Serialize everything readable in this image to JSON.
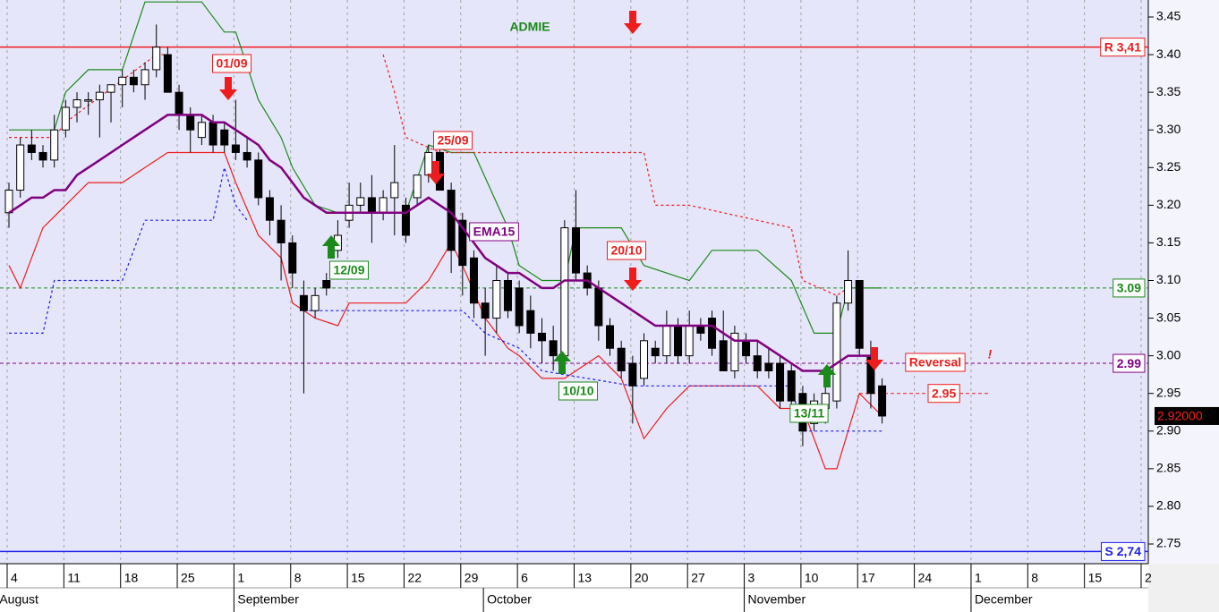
{
  "chart_data": {
    "type": "candlestick",
    "title": "ADMIE",
    "title_color": "#1a8a1a",
    "ylim": [
      2.74,
      3.47
    ],
    "yticks": [
      2.75,
      {
        "value": 2.8,
        "label": "2.80"
      },
      2.85,
      {
        "value": 2.9,
        "label": "2.90"
      },
      2.95,
      {
        "value": 3.0,
        "label": "3.00"
      },
      3.05,
      {
        "value": 3.1,
        "label": "3.10"
      },
      3.15,
      {
        "value": 3.2,
        "label": "3.20"
      },
      3.25,
      {
        "value": 3.3,
        "label": "3.30"
      },
      3.35,
      {
        "value": 3.4,
        "label": "3.40"
      },
      3.45
    ],
    "xticks": [
      {
        "value": "08-04",
        "label": "4"
      },
      {
        "value": "08-11",
        "label": "11"
      },
      {
        "value": "08-18",
        "label": "18"
      },
      {
        "value": "08-25",
        "label": "25"
      },
      {
        "value": "09-01",
        "label": "1"
      },
      {
        "value": "09-08",
        "label": "8"
      },
      {
        "value": "09-15",
        "label": "15"
      },
      {
        "value": "09-22",
        "label": "22"
      },
      {
        "value": "09-29",
        "label": "29"
      },
      {
        "value": "10-06",
        "label": "6"
      },
      {
        "value": "10-13",
        "label": "13"
      },
      {
        "value": "10-20",
        "label": "20"
      },
      {
        "value": "10-27",
        "label": "27"
      },
      {
        "value": "11-03",
        "label": "3"
      },
      {
        "value": "11-10",
        "label": "10"
      },
      {
        "value": "11-17",
        "label": "17"
      },
      {
        "value": "11-24",
        "label": "24"
      },
      {
        "value": "12-01",
        "label": "1"
      },
      {
        "value": "12-08",
        "label": "8"
      },
      {
        "value": "12-15",
        "label": "15"
      },
      {
        "value": "12-22",
        "label": "2"
      }
    ],
    "months": [
      {
        "value": "08-01",
        "label": "August"
      },
      {
        "value": "09-01",
        "label": "September"
      },
      {
        "value": "10-01",
        "label": "October"
      },
      {
        "value": "11-03",
        "label": "November"
      },
      {
        "value": "12-01",
        "label": "December"
      }
    ],
    "grid": true,
    "candles": {
      "up_color": "#ffffff",
      "down_color": "#000000",
      "dates": [
        "08-04",
        "08-05",
        "08-06",
        "08-07",
        "08-08",
        "08-11",
        "08-12",
        "08-13",
        "08-14",
        "08-15",
        "08-18",
        "08-19",
        "08-20",
        "08-21",
        "08-22",
        "08-25",
        "08-26",
        "08-27",
        "08-28",
        "08-29",
        "09-01",
        "09-02",
        "09-03",
        "09-04",
        "09-05",
        "09-08",
        "09-09",
        "09-10",
        "09-11",
        "09-12",
        "09-15",
        "09-16",
        "09-17",
        "09-18",
        "09-19",
        "09-22",
        "09-23",
        "09-24",
        "09-25",
        "09-26",
        "09-29",
        "09-30",
        "10-01",
        "10-02",
        "10-03",
        "10-06",
        "10-07",
        "10-08",
        "10-09",
        "10-10",
        "10-13",
        "10-14",
        "10-15",
        "10-16",
        "10-17",
        "10-20",
        "10-21",
        "10-22",
        "10-23",
        "10-24",
        "10-27",
        "10-28",
        "10-29",
        "10-30",
        "10-31",
        "11-03",
        "11-04",
        "11-05",
        "11-06",
        "11-07",
        "11-10",
        "11-11",
        "11-12",
        "11-13",
        "11-14",
        "11-17",
        "11-18",
        "11-19"
      ],
      "open": [
        3.19,
        3.22,
        3.28,
        3.27,
        3.26,
        3.3,
        3.33,
        3.34,
        3.34,
        3.35,
        3.36,
        3.37,
        3.36,
        3.38,
        3.4,
        3.35,
        3.32,
        3.29,
        3.31,
        3.3,
        3.28,
        3.27,
        3.26,
        3.21,
        3.18,
        3.15,
        3.08,
        3.06,
        3.1,
        3.14,
        3.18,
        3.2,
        3.21,
        3.19,
        3.21,
        3.2,
        3.21,
        3.24,
        3.27,
        3.22,
        3.18,
        3.13,
        3.07,
        3.05,
        3.1,
        3.09,
        3.06,
        3.03,
        3.02,
        3.0,
        3.17,
        3.11,
        3.09,
        3.04,
        3.01,
        2.99,
        2.97,
        3.01,
        3.0,
        3.04,
        3.0,
        3.04,
        3.05,
        3.02,
        2.98,
        3.02,
        3.0,
        2.99,
        2.99,
        2.98,
        2.95,
        2.91,
        2.93,
        2.94,
        3.07,
        3.1,
        3.0,
        2.96
      ],
      "high": [
        3.23,
        3.29,
        3.3,
        3.28,
        3.32,
        3.34,
        3.35,
        3.35,
        3.36,
        3.36,
        3.38,
        3.38,
        3.39,
        3.44,
        3.41,
        3.36,
        3.33,
        3.32,
        3.32,
        3.31,
        3.34,
        3.29,
        3.27,
        3.22,
        3.2,
        3.16,
        3.1,
        3.09,
        3.11,
        3.18,
        3.23,
        3.23,
        3.24,
        3.22,
        3.28,
        3.21,
        3.24,
        3.28,
        3.28,
        3.23,
        3.19,
        3.14,
        3.09,
        3.12,
        3.11,
        3.1,
        3.08,
        3.05,
        3.04,
        3.18,
        3.22,
        3.12,
        3.1,
        3.05,
        3.02,
        3.0,
        3.03,
        3.02,
        3.06,
        3.05,
        3.06,
        3.05,
        3.06,
        3.06,
        3.04,
        3.03,
        3.02,
        3.01,
        3.0,
        2.99,
        2.96,
        2.95,
        2.96,
        3.08,
        3.14,
        3.1,
        3.02,
        2.97
      ],
      "low": [
        3.17,
        3.21,
        3.26,
        3.25,
        3.25,
        3.29,
        3.31,
        3.32,
        3.29,
        3.31,
        3.33,
        3.35,
        3.34,
        3.37,
        3.35,
        3.3,
        3.27,
        3.28,
        3.27,
        3.27,
        3.26,
        3.25,
        3.2,
        3.16,
        3.1,
        3.09,
        2.95,
        3.05,
        3.08,
        3.13,
        3.17,
        3.19,
        3.15,
        3.18,
        3.16,
        3.15,
        3.2,
        3.23,
        3.22,
        3.11,
        3.08,
        3.05,
        3.0,
        3.03,
        3.05,
        3.03,
        3.01,
        2.99,
        2.98,
        2.98,
        3.1,
        3.08,
        3.02,
        3.0,
        2.97,
        2.91,
        2.96,
        2.99,
        2.99,
        2.99,
        2.99,
        3.02,
        3.0,
        2.98,
        2.97,
        2.99,
        2.97,
        2.97,
        2.93,
        2.93,
        2.88,
        2.9,
        2.91,
        2.93,
        3.06,
        3.0,
        2.93,
        2.91
      ],
      "close": [
        3.22,
        3.28,
        3.27,
        3.26,
        3.3,
        3.33,
        3.34,
        3.34,
        3.35,
        3.36,
        3.37,
        3.36,
        3.38,
        3.41,
        3.35,
        3.32,
        3.3,
        3.31,
        3.28,
        3.28,
        3.27,
        3.26,
        3.21,
        3.18,
        3.15,
        3.11,
        3.06,
        3.08,
        3.09,
        3.16,
        3.2,
        3.21,
        3.19,
        3.21,
        3.23,
        3.16,
        3.24,
        3.27,
        3.22,
        3.14,
        3.12,
        3.07,
        3.05,
        3.1,
        3.06,
        3.04,
        3.03,
        3.02,
        3.0,
        3.17,
        3.11,
        3.09,
        3.04,
        3.01,
        2.98,
        2.96,
        3.02,
        3.0,
        3.04,
        3.0,
        3.04,
        3.03,
        3.01,
        2.98,
        3.03,
        3.0,
        2.98,
        2.98,
        2.94,
        2.94,
        2.9,
        2.94,
        2.95,
        3.07,
        3.1,
        3.01,
        2.95,
        2.92
      ],
      "ema_name": "EMA15",
      "ema_color": "#800080",
      "ema": [
        3.19,
        3.2,
        3.21,
        3.21,
        3.22,
        3.22,
        3.24,
        3.25,
        3.26,
        3.27,
        3.28,
        3.29,
        3.3,
        3.31,
        3.32,
        3.32,
        3.32,
        3.32,
        3.31,
        3.31,
        3.3,
        3.29,
        3.28,
        3.26,
        3.25,
        3.23,
        3.21,
        3.2,
        3.19,
        3.19,
        3.19,
        3.19,
        3.19,
        3.19,
        3.19,
        3.19,
        3.2,
        3.21,
        3.2,
        3.19,
        3.17,
        3.15,
        3.13,
        3.12,
        3.11,
        3.11,
        3.1,
        3.09,
        3.09,
        3.1,
        3.1,
        3.1,
        3.09,
        3.08,
        3.07,
        3.06,
        3.05,
        3.04,
        3.04,
        3.04,
        3.04,
        3.04,
        3.04,
        3.03,
        3.02,
        3.02,
        3.02,
        3.01,
        3.0,
        2.99,
        2.98,
        2.98,
        2.98,
        2.99,
        3.0,
        3.0,
        3.0,
        null
      ]
    },
    "lines": [
      {
        "color": "#1a8a1a",
        "dashed": false,
        "x": [
          "08-04",
          "08-08",
          "08-11",
          "08-13",
          "08-18",
          "08-20",
          "08-27",
          "08-29",
          "09-01",
          "09-03",
          "09-05",
          "09-08",
          "09-10",
          "09-12",
          "09-22",
          "09-24",
          "09-26",
          "09-30",
          "10-03",
          "10-06",
          "10-08",
          "10-10",
          "10-13",
          "10-17",
          "10-21",
          "10-27",
          "10-29",
          "11-04",
          "11-07",
          "11-11",
          "11-13",
          "11-14",
          "11-19"
        ],
        "values": [
          3.3,
          3.3,
          3.35,
          3.38,
          3.38,
          3.47,
          3.47,
          3.43,
          3.43,
          3.34,
          3.29,
          3.25,
          3.2,
          3.19,
          3.19,
          3.28,
          3.27,
          3.27,
          3.17,
          3.12,
          3.1,
          3.1,
          3.17,
          3.17,
          3.12,
          3.1,
          3.14,
          3.14,
          3.1,
          3.03,
          3.03,
          3.09,
          3.09
        ]
      },
      {
        "color": "#ee1c1c",
        "dashed": false,
        "x": [
          "08-04",
          "08-05",
          "08-07",
          "08-11",
          "08-13",
          "08-18",
          "08-20",
          "08-22",
          "08-29",
          "09-01",
          "09-03",
          "09-05",
          "09-08",
          "09-10",
          "09-12",
          "09-15",
          "09-22",
          "09-24",
          "09-26",
          "09-29",
          "10-01",
          "10-03",
          "10-06",
          "10-08",
          "10-10",
          "10-15",
          "10-17",
          "10-21",
          "10-23",
          "10-27",
          "11-04",
          "11-06",
          "11-10",
          "11-12",
          "11-13",
          "11-17",
          "11-19"
        ],
        "values": [
          3.12,
          3.09,
          3.17,
          3.2,
          3.23,
          3.23,
          3.25,
          3.27,
          3.27,
          3.23,
          3.16,
          3.13,
          3.07,
          3.05,
          3.04,
          3.07,
          3.07,
          3.1,
          3.15,
          3.12,
          3.05,
          3.01,
          3.0,
          2.97,
          2.97,
          3.0,
          2.97,
          2.89,
          2.93,
          2.96,
          2.96,
          2.93,
          2.93,
          2.85,
          2.85,
          2.95,
          2.92
        ]
      },
      {
        "color": "#ee1c1c",
        "dashed": true,
        "x": [
          "08-04",
          "08-08",
          "08-11",
          "08-21",
          "08-22",
          "08-25",
          "09-18",
          "09-19",
          "09-22",
          "09-25",
          "10-21",
          "10-22",
          "10-27",
          "11-07",
          "11-10",
          "11-13",
          "11-14"
        ],
        "values": [
          3.29,
          3.29,
          3.31,
          3.4,
          3.4,
          null,
          3.4,
          3.35,
          3.29,
          3.27,
          3.27,
          3.2,
          3.2,
          3.17,
          3.1,
          3.08,
          3.09
        ]
      },
      {
        "color": "#1c1cee",
        "dashed": true,
        "x": [
          "08-04",
          "08-07",
          "08-08",
          "08-18",
          "08-20",
          "08-28",
          "08-29",
          "09-01",
          "09-02",
          "09-03",
          "09-09",
          "09-29",
          "10-01",
          "10-06",
          "10-08",
          "10-20",
          "11-07",
          "11-10",
          "11-19"
        ],
        "values": [
          3.03,
          3.03,
          3.1,
          3.1,
          3.18,
          3.18,
          3.25,
          3.2,
          3.18,
          null,
          3.06,
          3.06,
          3.03,
          3.01,
          2.98,
          2.96,
          2.96,
          2.9,
          2.9
        ]
      }
    ],
    "levels": [
      {
        "value": 3.41,
        "label": "R 3,41",
        "color": "#ee1c1c",
        "dashed": false
      },
      {
        "value": 3.09,
        "label": "3.09",
        "color": "#1a8a1a",
        "dashed": true
      },
      {
        "value": 2.99,
        "label": "2.99",
        "color": "#800080",
        "dashed": true
      },
      {
        "value": 2.95,
        "label": "2.95",
        "color": "#ee1c1c",
        "dashed": true
      },
      {
        "value": 2.74,
        "label": "S 2,74",
        "color": "#1c1cee",
        "dashed": false
      }
    ],
    "last_price": {
      "value": 2.92,
      "value_label": "2.92000"
    },
    "annotations": [
      {
        "text": "01/09",
        "color": "#ee1c1c"
      },
      {
        "text": "25/09",
        "color": "#ee1c1c"
      },
      {
        "text": "20/10",
        "color": "#ee1c1c"
      },
      {
        "text": "12/09",
        "color": "#1a8a1a"
      },
      {
        "text": "10/10",
        "color": "#1a8a1a"
      },
      {
        "text": "13/11",
        "color": "#1a8a1a"
      },
      {
        "text": "EMA15",
        "color": "#800080"
      },
      {
        "text": "Reversal",
        "color": "#ee1c1c"
      },
      {
        "text": "!",
        "color": "#ee1c1c"
      }
    ]
  }
}
